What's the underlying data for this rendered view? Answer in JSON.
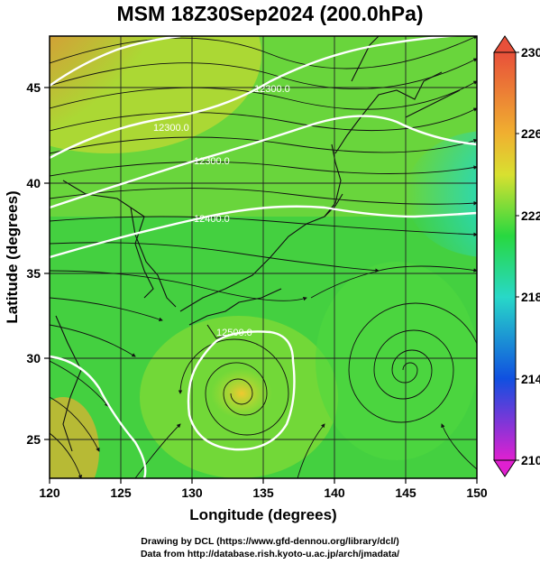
{
  "title": "MSM 18Z30Sep2024 (200.0hPa)",
  "axes": {
    "xlabel": "Longitude (degrees)",
    "ylabel": "Latitude  (degrees)",
    "x_ticks": [
      "120",
      "125",
      "130",
      "135",
      "140",
      "145",
      "150"
    ],
    "y_ticks": [
      "25",
      "30",
      "35",
      "40",
      "45"
    ]
  },
  "colorbar": {
    "labels": [
      "230",
      "226",
      "222",
      "218",
      "214",
      "210"
    ],
    "range": [
      210,
      230
    ],
    "colors": {
      "top": "#e8503a",
      "upper": "#f0b030",
      "mid_upper": "#d8e030",
      "mid": "#28d840",
      "mid_lower": "#28d8c8",
      "lower": "#1050e0",
      "bottom": "#e020d0"
    }
  },
  "contour_labels": [
    "12300.0",
    "12300.0",
    "12300.0",
    "12400.0",
    "12500.0"
  ],
  "credits": {
    "line1": "Drawing by DCL (https://www.gfd-dennou.org/library/dcl/)",
    "line2": "Data from http://database.rish.kyoto-u.ac.jp/arch/jmadata/"
  },
  "chart_data": {
    "type": "heatmap",
    "title": "MSM 18Z30Sep2024 (200.0hPa)",
    "xlabel": "Longitude (degrees)",
    "ylabel": "Latitude  (degrees)",
    "xlim": [
      120,
      150
    ],
    "ylim": [
      22.5,
      48
    ],
    "clim": [
      210,
      230
    ],
    "grid": true,
    "x_ticks": [
      120,
      125,
      130,
      135,
      140,
      145,
      150
    ],
    "y_ticks": [
      25,
      30,
      35,
      40,
      45
    ],
    "colorbar_ticks": [
      230,
      226,
      222,
      218,
      214,
      210
    ],
    "contour_levels": [
      12300,
      12400,
      12500
    ],
    "features": [
      "temperature shading",
      "geopotential height contours",
      "streamlines"
    ]
  }
}
